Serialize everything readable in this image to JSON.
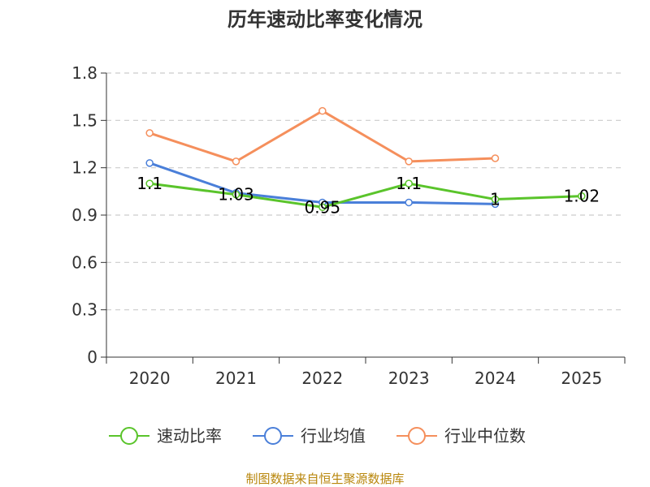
{
  "chart_data": {
    "type": "line",
    "title": "历年速动比率变化情况",
    "categories": [
      "2020",
      "2021",
      "2022",
      "2023",
      "2024",
      "2025"
    ],
    "yticks": [
      "0",
      "0.3",
      "0.6",
      "0.9",
      "1.2",
      "1.5",
      "1.8"
    ],
    "ylim": [
      0,
      1.8
    ],
    "grid": true,
    "legend_position": "bottom",
    "series": [
      {
        "name": "速动比率",
        "color": "#5ac42b",
        "values": [
          1.1,
          1.03,
          0.95,
          1.1,
          1.0,
          1.02
        ],
        "labels": [
          "1.1",
          "1.03",
          "0.95",
          "1.1",
          "1",
          "1.02"
        ]
      },
      {
        "name": "行业均值",
        "color": "#4a7fd9",
        "values": [
          1.23,
          1.04,
          0.98,
          0.98,
          0.97,
          null
        ]
      },
      {
        "name": "行业中位数",
        "color": "#f58f5c",
        "values": [
          1.42,
          1.24,
          1.56,
          1.24,
          1.26,
          null
        ]
      }
    ]
  },
  "source": "制图数据来自恒生聚源数据库"
}
